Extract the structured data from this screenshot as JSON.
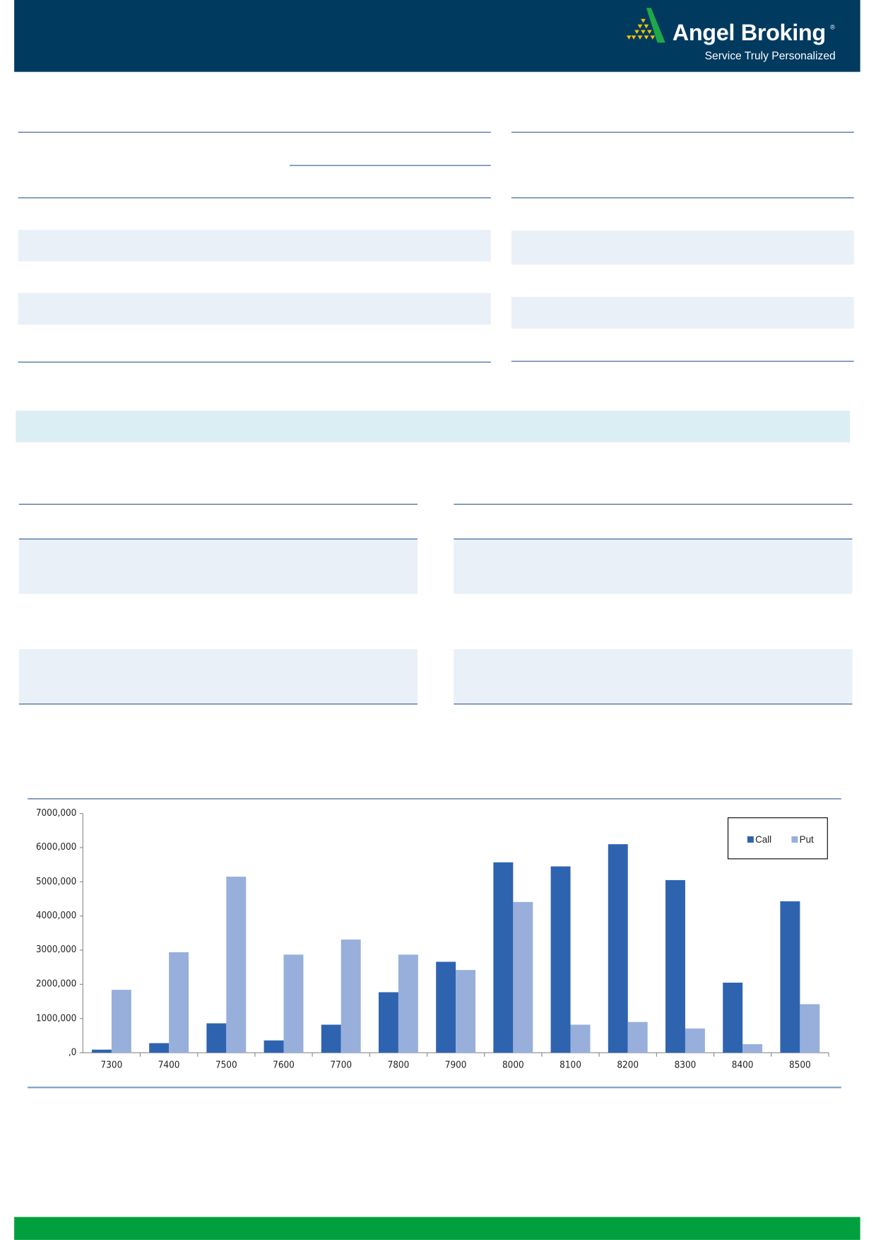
{
  "header": {
    "brand": "Angel Broking",
    "tagline": "Service Truly Personalized",
    "registered_mark": "®",
    "background_color": "#003a5f"
  },
  "colors": {
    "band": "#dbeef3",
    "footer": "#00a03e",
    "row_shade": "#e9f0f8"
  },
  "chart_data": {
    "type": "bar",
    "categories": [
      "7300",
      "7400",
      "7500",
      "7600",
      "7700",
      "7800",
      "7900",
      "8000",
      "8100",
      "8200",
      "8300",
      "8400",
      "8500"
    ],
    "series": [
      {
        "name": "Call",
        "color": "#2e63b0",
        "values": [
          90000,
          280000,
          860000,
          360000,
          820000,
          1770000,
          2660000,
          5570000,
          5450000,
          6100000,
          5050000,
          2050000,
          4430000
        ]
      },
      {
        "name": "Put",
        "color": "#98afdb",
        "values": [
          1840000,
          2940000,
          5150000,
          2870000,
          3310000,
          2870000,
          2420000,
          4410000,
          820000,
          900000,
          710000,
          250000,
          1420000
        ]
      }
    ],
    "ylim": [
      0,
      7000000
    ],
    "yticks": [
      0,
      1000000,
      2000000,
      3000000,
      4000000,
      5000000,
      6000000,
      7000000
    ],
    "ytick_labels": [
      ",0",
      "1000,000",
      "2000,000",
      "3000,000",
      "4000,000",
      "5000,000",
      "6000,000",
      "7000,000"
    ],
    "legend": "top-right",
    "grid": false
  }
}
